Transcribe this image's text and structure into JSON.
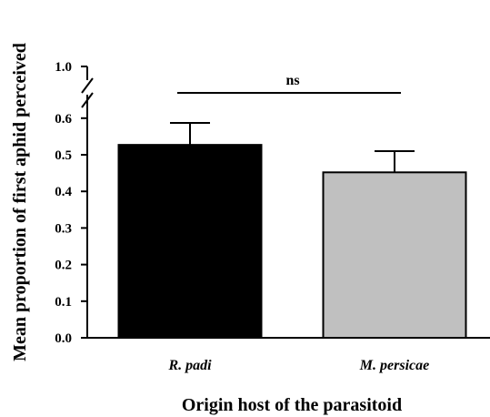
{
  "chart_data": {
    "type": "bar",
    "categories": [
      "R. padi",
      "M. persicae"
    ],
    "values": [
      0.527,
      0.452
    ],
    "errors": [
      0.06,
      0.058
    ],
    "bar_colors": [
      "#000000",
      "#c0c0c0"
    ],
    "xlabel": "Origin host of the parasitoid",
    "ylabel": "Mean proportion of first aphid perceived",
    "ylim": [
      0,
      1.0
    ],
    "y_axis_break": true,
    "yticks": [
      "0.0",
      "0.1",
      "0.2",
      "0.3",
      "0.4",
      "0.5",
      "0.6"
    ],
    "ytick_values": [
      0,
      0.1,
      0.2,
      0.3,
      0.4,
      0.5,
      0.6
    ],
    "ytick_top": "1.0",
    "ytick_top_value": 1.0,
    "annotation": "ns",
    "grid": false
  }
}
